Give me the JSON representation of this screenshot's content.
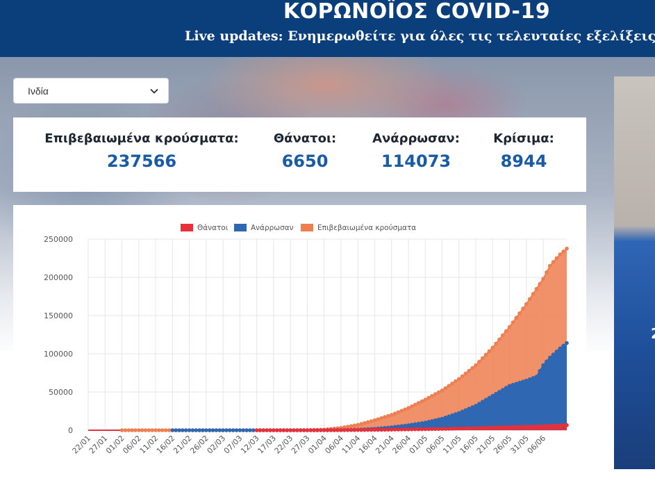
{
  "header": {
    "title": "ΚΟΡΩΝΟΪΟΣ COVID-19",
    "subtitle": "Live updates: Ενημερωθείτε για όλες τις τελευταίες εξελίξεις"
  },
  "country_select": {
    "value": "Ινδία"
  },
  "stats": [
    {
      "label": "Επιβεβαιωμένα κρούσματα:",
      "value": "237566"
    },
    {
      "label": "Θάνατοι:",
      "value": "6650"
    },
    {
      "label": "Ανάρρωσαν:",
      "value": "114073"
    },
    {
      "label": "Κρίσιμα:",
      "value": "8944"
    }
  ],
  "side_panel": {
    "partial_text": "2"
  },
  "colors": {
    "header": "#0b3f7c",
    "deaths": "#e8303a",
    "recovered": "#2f67b2",
    "confirmed": "#ef7e50",
    "stat_value": "#1a5ba6"
  },
  "chart_data": {
    "type": "area",
    "x_labels": [
      "22/01",
      "27/01",
      "01/02",
      "06/02",
      "11/02",
      "16/02",
      "21/02",
      "26/02",
      "02/03",
      "07/03",
      "12/03",
      "17/03",
      "22/03",
      "27/03",
      "01/04",
      "06/04",
      "11/04",
      "16/04",
      "21/04",
      "26/04",
      "01/05",
      "06/05",
      "11/05",
      "16/05",
      "21/05",
      "26/05",
      "31/05",
      "06/06"
    ],
    "ylim": [
      0,
      250000
    ],
    "y_ticks": [
      0,
      50000,
      100000,
      150000,
      200000,
      250000
    ],
    "y_tick_labels": [
      "0",
      "50000",
      "100000",
      "150000",
      "200000",
      "250000"
    ],
    "legend": {
      "position": "top-center"
    },
    "grid": true,
    "series": [
      {
        "name": "Θάνατοι",
        "color": "#e8303a",
        "points": [
          [
            0,
            0
          ],
          [
            40,
            0
          ],
          [
            60,
            0
          ],
          [
            70,
            50
          ],
          [
            75,
            90
          ],
          [
            80,
            300
          ],
          [
            85,
            480
          ],
          [
            90,
            780
          ],
          [
            95,
            1070
          ],
          [
            100,
            1400
          ],
          [
            105,
            1700
          ],
          [
            110,
            2200
          ],
          [
            115,
            2650
          ],
          [
            120,
            3400
          ],
          [
            125,
            4000
          ],
          [
            130,
            4500
          ],
          [
            135,
            5200
          ],
          [
            137,
            5600
          ],
          [
            140,
            6200
          ],
          [
            142,
            6650
          ]
        ]
      },
      {
        "name": "Ανάρρωσαν",
        "color": "#2f67b2",
        "points": [
          [
            0,
            0
          ],
          [
            40,
            0
          ],
          [
            60,
            0
          ],
          [
            70,
            5
          ],
          [
            75,
            170
          ],
          [
            80,
            700
          ],
          [
            85,
            1800
          ],
          [
            90,
            3800
          ],
          [
            95,
            6500
          ],
          [
            100,
            10000
          ],
          [
            105,
            15000
          ],
          [
            110,
            22500
          ],
          [
            115,
            32000
          ],
          [
            120,
            45000
          ],
          [
            125,
            58000
          ],
          [
            130,
            65000
          ],
          [
            133,
            70000
          ],
          [
            135,
            85000
          ],
          [
            137,
            95000
          ],
          [
            140,
            107000
          ],
          [
            142,
            114073
          ]
        ]
      },
      {
        "name": "Επιβεβαιωμένα κρούσματα",
        "color": "#ef7e50",
        "points": [
          [
            0,
            0
          ],
          [
            40,
            0
          ],
          [
            60,
            0
          ],
          [
            65,
            110
          ],
          [
            70,
            800
          ],
          [
            75,
            3000
          ],
          [
            80,
            7000
          ],
          [
            85,
            13000
          ],
          [
            90,
            20000
          ],
          [
            95,
            29000
          ],
          [
            100,
            40000
          ],
          [
            105,
            52000
          ],
          [
            110,
            67000
          ],
          [
            115,
            85000
          ],
          [
            120,
            108000
          ],
          [
            125,
            135000
          ],
          [
            130,
            165000
          ],
          [
            135,
            198000
          ],
          [
            137,
            215000
          ],
          [
            140,
            230000
          ],
          [
            142,
            237566
          ]
        ]
      }
    ],
    "marker_start_day": {
      "confirmed": 10,
      "recovered": 25,
      "deaths": 50
    }
  }
}
